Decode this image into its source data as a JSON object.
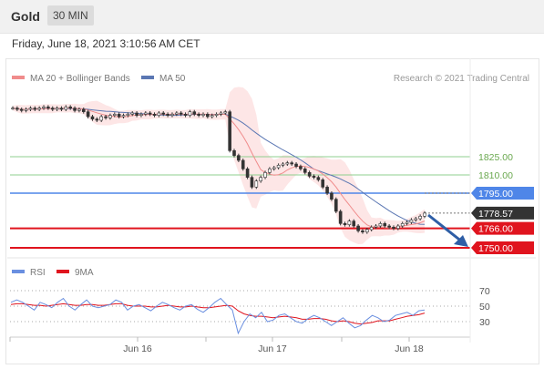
{
  "header": {
    "instrument": "Gold",
    "timeframe": "30 MIN"
  },
  "timestamp": "Friday, June 18, 2021 3:10:56 AM CET",
  "legend": {
    "ma20_bb": "MA 20 + Bollinger Bands",
    "ma50": "MA 50",
    "credit": "Research © 2021 Trading Central",
    "rsi": "RSI",
    "rsi_ma": "9MA"
  },
  "colors": {
    "ma20": "#f08c8c",
    "bands": "#fde3e3",
    "ma50": "#5b77b3",
    "green": "#8fcf8f",
    "blue_level": "#4f86e8",
    "red_level": "#e0141e",
    "current": "#333333",
    "rsi": "#6a8fe0",
    "rsi_ma": "#e0141e",
    "arrow": "#2e5ea6"
  },
  "chart_data": [
    {
      "type": "line",
      "name": "price",
      "x_labels": [
        "Jun 16",
        "Jun 17",
        "Jun 18"
      ],
      "levels": [
        {
          "label": "1825.00",
          "value": 1825.0,
          "kind": "resistance"
        },
        {
          "label": "1810.00",
          "value": 1810.0,
          "kind": "resistance"
        },
        {
          "label": "1795.00",
          "value": 1795.0,
          "kind": "pivot"
        },
        {
          "label": "1778.57",
          "value": 1778.57,
          "kind": "last"
        },
        {
          "label": "1766.00",
          "value": 1766.0,
          "kind": "support"
        },
        {
          "label": "1750.00",
          "value": 1750.0,
          "kind": "support"
        }
      ],
      "close": [
        1865,
        1864,
        1863,
        1864,
        1865,
        1864,
        1865,
        1866,
        1865,
        1864,
        1865,
        1864,
        1866,
        1865,
        1863,
        1864,
        1862,
        1858,
        1856,
        1855,
        1858,
        1857,
        1859,
        1860,
        1858,
        1859,
        1860,
        1861,
        1859,
        1860,
        1861,
        1860,
        1859,
        1861,
        1860,
        1859,
        1860,
        1861,
        1860,
        1859,
        1862,
        1860,
        1859,
        1860,
        1858,
        1859,
        1860,
        1861,
        1862,
        1830,
        1826,
        1822,
        1815,
        1808,
        1800,
        1805,
        1808,
        1812,
        1815,
        1816,
        1818,
        1819,
        1820,
        1819,
        1817,
        1815,
        1812,
        1809,
        1808,
        1806,
        1800,
        1795,
        1790,
        1780,
        1770,
        1769,
        1772,
        1768,
        1764,
        1763,
        1765,
        1767,
        1768,
        1770,
        1768,
        1767,
        1766,
        1768,
        1770,
        1771,
        1773,
        1774,
        1776,
        1778.57
      ]
    },
    {
      "type": "line",
      "name": "rsi",
      "levels": [
        70,
        50,
        30
      ],
      "rsi": [
        55,
        58,
        55,
        50,
        45,
        55,
        52,
        48,
        55,
        60,
        50,
        45,
        52,
        58,
        50,
        48,
        50,
        52,
        58,
        55,
        45,
        50,
        52,
        48,
        44,
        50,
        55,
        52,
        48,
        45,
        50,
        52,
        46,
        42,
        48,
        55,
        60,
        52,
        45,
        15,
        30,
        40,
        35,
        42,
        30,
        32,
        38,
        40,
        35,
        30,
        28,
        34,
        38,
        35,
        30,
        25,
        30,
        35,
        28,
        22,
        25,
        32,
        38,
        35,
        30,
        32,
        38,
        40,
        42,
        38,
        44,
        45
      ],
      "ma9": [
        52,
        53,
        53,
        52,
        51,
        51,
        50,
        51,
        52,
        53,
        52,
        51,
        51,
        52,
        52,
        51,
        51,
        52,
        53,
        53,
        51,
        50,
        50,
        50,
        49,
        49,
        50,
        51,
        50,
        49,
        49,
        50,
        49,
        48,
        48,
        49,
        50,
        51,
        50,
        44,
        40,
        38,
        37,
        37,
        36,
        35,
        36,
        37,
        36,
        35,
        33,
        33,
        34,
        34,
        33,
        31,
        30,
        31,
        30,
        28,
        27,
        28,
        29,
        31,
        31,
        31,
        33,
        35,
        37,
        38,
        39,
        41
      ]
    }
  ]
}
